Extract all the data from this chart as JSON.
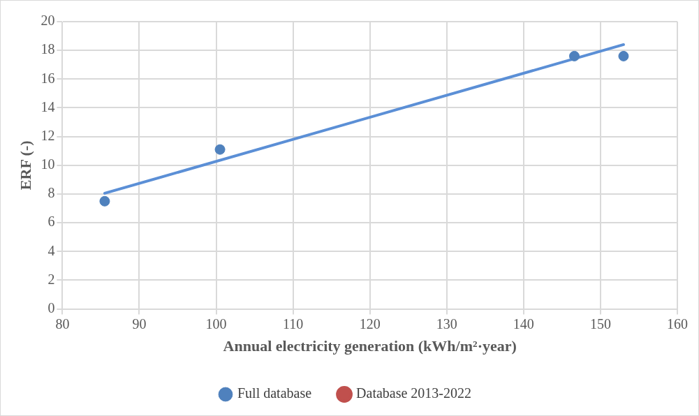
{
  "chart_data": {
    "type": "scatter",
    "xlabel": "Annual electricity generation (kWh/m²·year)",
    "ylabel": "ERF (-)",
    "xlim": [
      80,
      160
    ],
    "xticks": [
      80,
      90,
      100,
      110,
      120,
      130,
      140,
      150,
      160
    ],
    "ylim": [
      0,
      20
    ],
    "yticks": [
      0,
      2,
      4,
      6,
      8,
      10,
      12,
      14,
      16,
      18,
      20
    ],
    "grid": true,
    "legend": "bottom",
    "series": [
      {
        "name": "Full database",
        "marker": "circle",
        "color": "#4f81bd",
        "x": [
          85.5,
          100.5,
          146.6,
          153
        ],
        "values": [
          7.5,
          11.1,
          17.6,
          17.6
        ]
      },
      {
        "name": "Database 2013-2022",
        "type": "line",
        "marker": "circle",
        "color": "#c0504d"
      },
      {
        "type": "line",
        "marker": "none",
        "color": "#5b8fd6",
        "x": [
          85.5,
          153
        ],
        "values": [
          8.05,
          18.4
        ]
      }
    ]
  }
}
